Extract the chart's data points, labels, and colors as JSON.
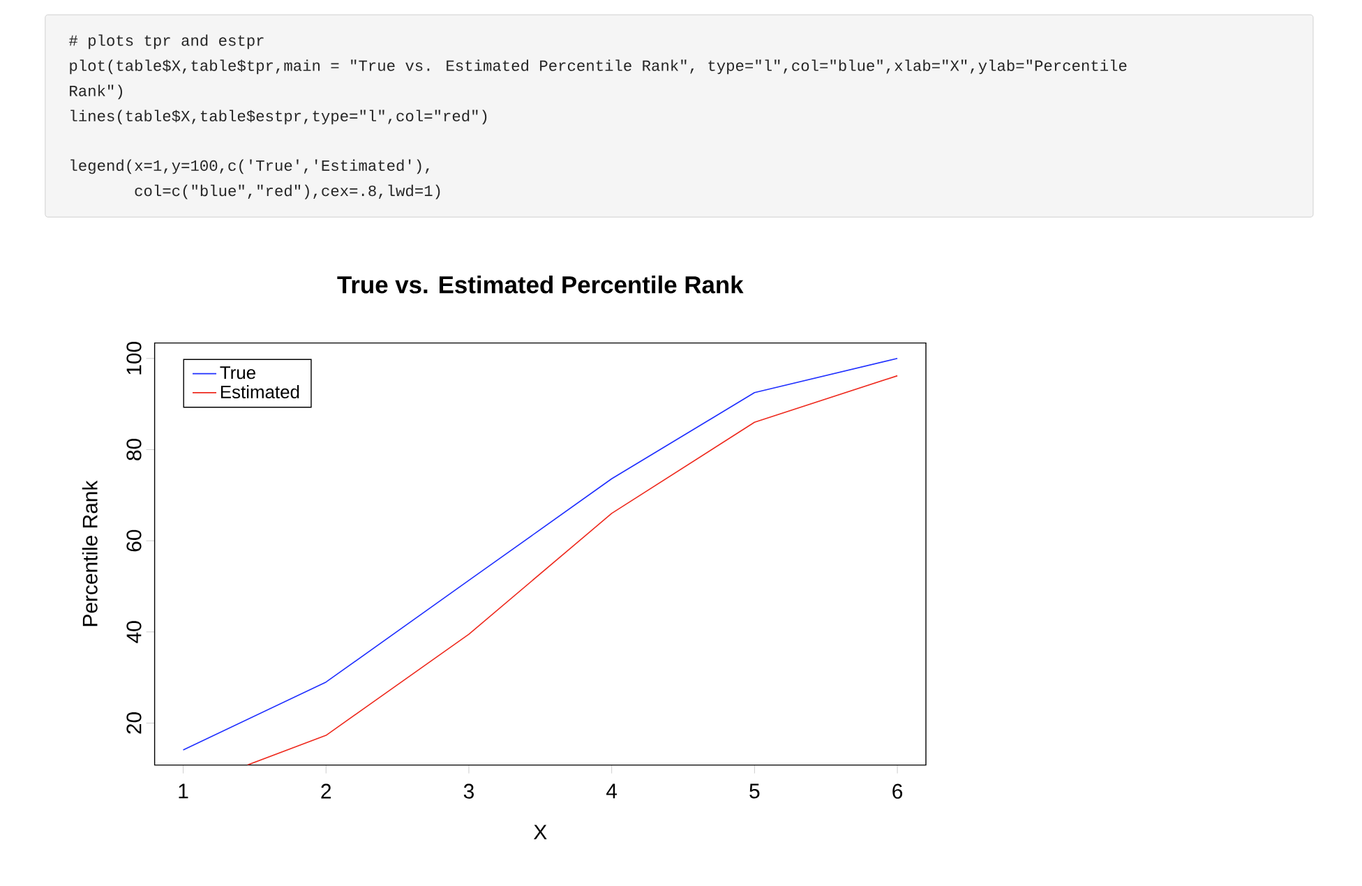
{
  "chart_data": {
    "type": "line",
    "title": "True vs. Estimated Percentile Rank",
    "xlabel": "X",
    "ylabel": "Percentile Rank",
    "x": [
      1,
      2,
      3,
      4,
      5,
      6
    ],
    "series": [
      {
        "name": "True",
        "color": "#1f2fff",
        "values": [
          14.1,
          29.0,
          51.3,
          73.6,
          92.5,
          100
        ]
      },
      {
        "name": "Estimated",
        "color": "#ee2a1e",
        "x": [
          1.45,
          2,
          3,
          4,
          5,
          6
        ],
        "values": [
          10.8,
          17.3,
          39.5,
          66.0,
          86.0,
          96.2
        ]
      }
    ],
    "xlim": [
      0.8,
      6.2
    ],
    "ylim": [
      10.8,
      103.4
    ],
    "xticks": [
      1,
      2,
      3,
      4,
      5,
      6
    ],
    "yticks": [
      20,
      40,
      60,
      80,
      100
    ],
    "grid": false,
    "legend": "top left",
    "marker": "none",
    "line_style": "solid",
    "annotations": [
      "# plots tpr and estpr",
      "plot(table$X,table$tpr,main = \"True vs. Estimated Percentile Rank\", type=\"l\",col=\"blue\",xlab=\"X\",ylab=\"Percentile",
      "Rank\")",
      "lines(table$X,table$estpr,type=\"l\",col=\"red\")",
      "legend(x=1,y=100,c('True','Estimated'),",
      "       col=c(\"blue\",\"red\"),cex=.8,lwd=1)"
    ]
  }
}
